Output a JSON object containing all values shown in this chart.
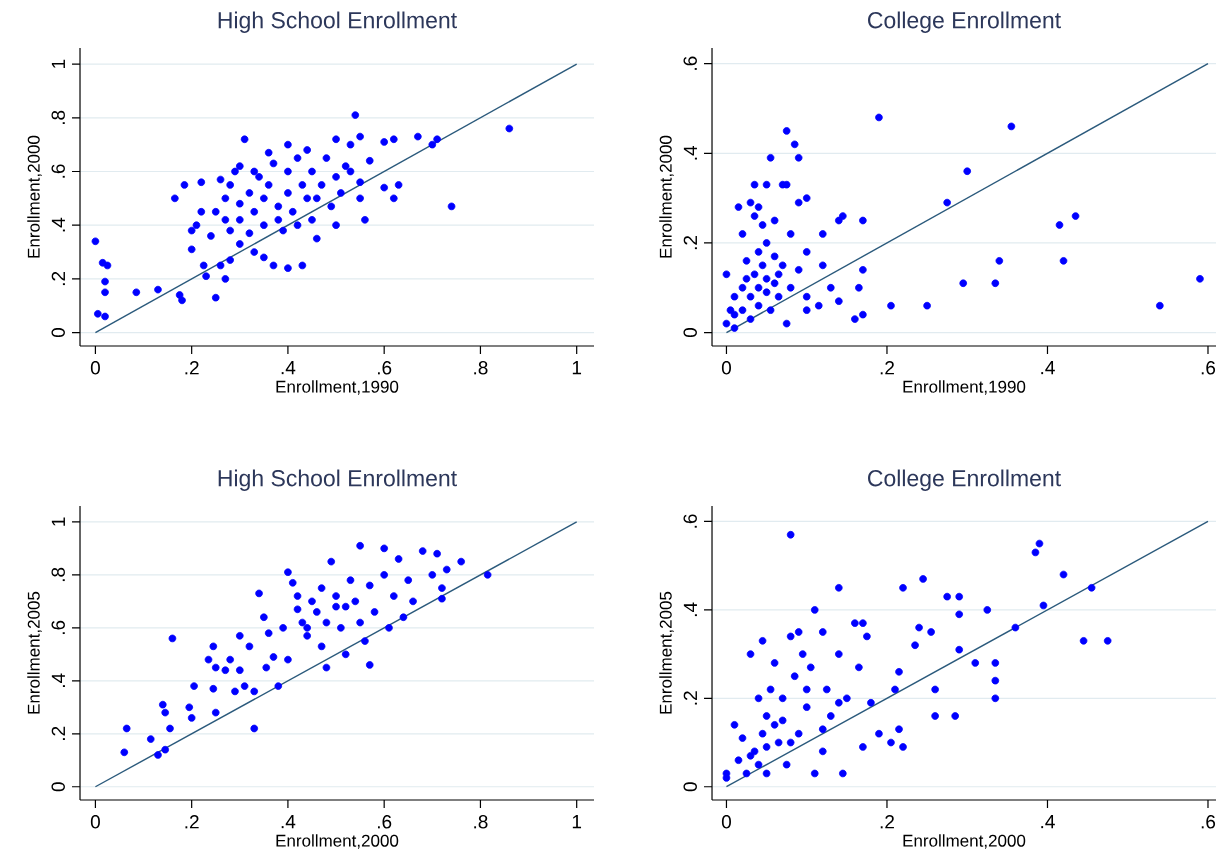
{
  "chart_data": [
    {
      "type": "scatter",
      "title": "High School Enrollment",
      "xlabel": "Enrollment,1990",
      "ylabel": "Enrollment,2000",
      "xlim": [
        -0.032,
        1.036
      ],
      "ylim": [
        -0.05,
        1.06
      ],
      "xticks": [
        0,
        {
          "value": 0.2,
          "label": ".2"
        },
        {
          "value": 0.4,
          "label": ".4"
        },
        {
          "value": 0.6,
          "label": ".6"
        },
        {
          "value": 0.8,
          "label": ".8"
        },
        1
      ],
      "yticks": [
        0,
        {
          "value": 0.2,
          "label": ".2"
        },
        {
          "value": 0.4,
          "label": ".4"
        },
        {
          "value": 0.6,
          "label": ".6"
        },
        {
          "value": 0.8,
          "label": ".8"
        },
        1
      ],
      "grid": "y",
      "series": [
        {
          "marker": "circle",
          "color": "#0000ff",
          "x": [
            0,
            0.005,
            0.02,
            0.015,
            0.02,
            0.025,
            0.02,
            0.085,
            0.13,
            0.175,
            0.18,
            0.165,
            0.185,
            0.2,
            0.2,
            0.22,
            0.225,
            0.23,
            0.25,
            0.26,
            0.27,
            0.28,
            0.3,
            0.31,
            0.33,
            0.35,
            0.37,
            0.4,
            0.43,
            0.46,
            0.5,
            0.54,
            0.55,
            0.56,
            0.6,
            0.62,
            0.6,
            0.62,
            0.63,
            0.67,
            0.7,
            0.71,
            0.74,
            0.86,
            0.25,
            0.27,
            0.28,
            0.3,
            0.3,
            0.32,
            0.33,
            0.33,
            0.35,
            0.35,
            0.36,
            0.37,
            0.38,
            0.38,
            0.4,
            0.4,
            0.41,
            0.42,
            0.43,
            0.44,
            0.45,
            0.45,
            0.47,
            0.48,
            0.5,
            0.5,
            0.52,
            0.53,
            0.55,
            0.57,
            0.55,
            0.49,
            0.22,
            0.21,
            0.24,
            0.28,
            0.3,
            0.26,
            0.32,
            0.4,
            0.44,
            0.36,
            0.27,
            0.29,
            0.34,
            0.39,
            0.42,
            0.46,
            0.51,
            0.53
          ],
          "values": [
            0.34,
            0.07,
            0.15,
            0.26,
            0.19,
            0.25,
            0.06,
            0.15,
            0.16,
            0.14,
            0.12,
            0.5,
            0.55,
            0.38,
            0.31,
            0.56,
            0.25,
            0.21,
            0.13,
            0.25,
            0.2,
            0.27,
            0.62,
            0.72,
            0.3,
            0.28,
            0.25,
            0.24,
            0.25,
            0.35,
            0.4,
            0.81,
            0.73,
            0.42,
            0.71,
            0.72,
            0.54,
            0.5,
            0.55,
            0.73,
            0.7,
            0.72,
            0.47,
            0.76,
            0.45,
            0.5,
            0.55,
            0.42,
            0.48,
            0.52,
            0.45,
            0.6,
            0.5,
            0.4,
            0.55,
            0.63,
            0.47,
            0.42,
            0.52,
            0.6,
            0.45,
            0.65,
            0.55,
            0.5,
            0.6,
            0.42,
            0.55,
            0.65,
            0.58,
            0.72,
            0.62,
            0.7,
            0.56,
            0.64,
            0.5,
            0.47,
            0.45,
            0.4,
            0.36,
            0.38,
            0.33,
            0.57,
            0.37,
            0.7,
            0.68,
            0.67,
            0.42,
            0.6,
            0.58,
            0.38,
            0.4,
            0.5,
            0.52,
            0.6
          ]
        },
        {
          "type": "line",
          "color": "#2b5a7c",
          "x": [
            0,
            1
          ],
          "values": [
            0,
            1
          ]
        }
      ]
    },
    {
      "type": "scatter",
      "title": "College Enrollment",
      "xlabel": "Enrollment,1990",
      "ylabel": "Enrollment,2000",
      "xlim": [
        -0.018,
        0.61
      ],
      "ylim": [
        -0.03,
        0.635
      ],
      "xticks": [
        0,
        {
          "value": 0.2,
          "label": ".2"
        },
        {
          "value": 0.4,
          "label": ".4"
        },
        {
          "value": 0.6,
          "label": ".6"
        }
      ],
      "yticks": [
        0,
        {
          "value": 0.2,
          "label": ".2"
        },
        {
          "value": 0.4,
          "label": ".4"
        },
        {
          "value": 0.6,
          "label": ".6"
        }
      ],
      "grid": "y",
      "series": [
        {
          "marker": "circle",
          "color": "#0000ff",
          "x": [
            0,
            0,
            0.005,
            0.01,
            0.01,
            0.015,
            0.02,
            0.025,
            0.03,
            0.035,
            0.035,
            0.04,
            0.045,
            0.05,
            0.055,
            0.06,
            0.07,
            0.075,
            0.075,
            0.085,
            0.09,
            0.09,
            0.1,
            0.08,
            0.1,
            0.12,
            0.14,
            0.145,
            0.17,
            0.19,
            0.275,
            0.3,
            0.355,
            0.34,
            0.415,
            0.435,
            0.42,
            0.59,
            0.54,
            0.295,
            0.335,
            0.25,
            0.205,
            0.16,
            0.17,
            0.165,
            0.17,
            0.14,
            0.13,
            0.12,
            0.115,
            0.1,
            0.1,
            0.07,
            0.06,
            0.05,
            0.04,
            0.03,
            0.02,
            0.03,
            0.04,
            0.05,
            0.06,
            0.045,
            0.035,
            0.025,
            0.055,
            0.065,
            0.075,
            0.08,
            0.09,
            0.04,
            0.05,
            0.065,
            0.02,
            0.01
          ],
          "values": [
            0.13,
            0.02,
            0.05,
            0.01,
            0.08,
            0.28,
            0.22,
            0.12,
            0.29,
            0.26,
            0.33,
            0.28,
            0.24,
            0.33,
            0.39,
            0.25,
            0.33,
            0.45,
            0.33,
            0.42,
            0.39,
            0.29,
            0.3,
            0.22,
            0.18,
            0.22,
            0.25,
            0.26,
            0.25,
            0.48,
            0.29,
            0.36,
            0.46,
            0.16,
            0.24,
            0.26,
            0.16,
            0.12,
            0.06,
            0.11,
            0.11,
            0.06,
            0.06,
            0.03,
            0.04,
            0.1,
            0.14,
            0.07,
            0.1,
            0.15,
            0.06,
            0.05,
            0.08,
            0.15,
            0.17,
            0.12,
            0.1,
            0.08,
            0.05,
            0.03,
            0.06,
            0.09,
            0.11,
            0.15,
            0.13,
            0.16,
            0.05,
            0.08,
            0.02,
            0.1,
            0.14,
            0.18,
            0.2,
            0.13,
            0.1,
            0.04
          ]
        },
        {
          "type": "line",
          "color": "#2b5a7c",
          "x": [
            0,
            0.6
          ],
          "values": [
            0,
            0.6
          ]
        }
      ]
    },
    {
      "type": "scatter",
      "title": "High School Enrollment",
      "xlabel": "Enrollment,2000",
      "ylabel": "Enrollment,2005",
      "xlim": [
        -0.032,
        1.036
      ],
      "ylim": [
        -0.05,
        1.06
      ],
      "xticks": [
        0,
        {
          "value": 0.2,
          "label": ".2"
        },
        {
          "value": 0.4,
          "label": ".4"
        },
        {
          "value": 0.6,
          "label": ".6"
        },
        {
          "value": 0.8,
          "label": ".8"
        },
        1
      ],
      "yticks": [
        0,
        {
          "value": 0.2,
          "label": ".2"
        },
        {
          "value": 0.4,
          "label": ".4"
        },
        {
          "value": 0.6,
          "label": ".6"
        },
        {
          "value": 0.8,
          "label": ".8"
        },
        1
      ],
      "grid": "y",
      "series": [
        {
          "marker": "circle",
          "color": "#0000ff",
          "x": [
            0.06,
            0.065,
            0.115,
            0.13,
            0.14,
            0.145,
            0.145,
            0.155,
            0.16,
            0.195,
            0.2,
            0.205,
            0.235,
            0.245,
            0.245,
            0.25,
            0.25,
            0.27,
            0.28,
            0.29,
            0.3,
            0.3,
            0.31,
            0.32,
            0.33,
            0.33,
            0.34,
            0.35,
            0.355,
            0.37,
            0.38,
            0.39,
            0.4,
            0.4,
            0.41,
            0.42,
            0.43,
            0.44,
            0.45,
            0.46,
            0.47,
            0.48,
            0.48,
            0.49,
            0.5,
            0.5,
            0.51,
            0.52,
            0.53,
            0.54,
            0.55,
            0.55,
            0.56,
            0.57,
            0.57,
            0.58,
            0.6,
            0.6,
            0.61,
            0.62,
            0.63,
            0.64,
            0.65,
            0.66,
            0.68,
            0.7,
            0.71,
            0.72,
            0.73,
            0.76,
            0.815,
            0.72,
            0.44,
            0.47,
            0.52,
            0.42,
            0.36
          ],
          "values": [
            0.13,
            0.22,
            0.18,
            0.12,
            0.31,
            0.28,
            0.14,
            0.22,
            0.56,
            0.3,
            0.26,
            0.38,
            0.48,
            0.53,
            0.37,
            0.45,
            0.28,
            0.44,
            0.48,
            0.36,
            0.57,
            0.44,
            0.38,
            0.53,
            0.22,
            0.36,
            0.73,
            0.64,
            0.45,
            0.49,
            0.38,
            0.6,
            0.81,
            0.48,
            0.77,
            0.67,
            0.62,
            0.57,
            0.7,
            0.66,
            0.75,
            0.45,
            0.62,
            0.85,
            0.72,
            0.68,
            0.6,
            0.5,
            0.78,
            0.7,
            0.91,
            0.62,
            0.55,
            0.46,
            0.76,
            0.66,
            0.9,
            0.8,
            0.6,
            0.72,
            0.86,
            0.64,
            0.78,
            0.7,
            0.89,
            0.8,
            0.88,
            0.75,
            0.82,
            0.85,
            0.8,
            0.71,
            0.6,
            0.53,
            0.68,
            0.72,
            0.58
          ]
        },
        {
          "type": "line",
          "color": "#2b5a7c",
          "x": [
            0,
            1
          ],
          "values": [
            0,
            1
          ]
        }
      ]
    },
    {
      "type": "scatter",
      "title": "College Enrollment",
      "xlabel": "Enrollment,2000",
      "ylabel": "Enrollment,2005",
      "xlim": [
        -0.018,
        0.61
      ],
      "ylim": [
        -0.03,
        0.635
      ],
      "xticks": [
        0,
        {
          "value": 0.2,
          "label": ".2"
        },
        {
          "value": 0.4,
          "label": ".4"
        },
        {
          "value": 0.6,
          "label": ".6"
        }
      ],
      "yticks": [
        0,
        {
          "value": 0.2,
          "label": ".2"
        },
        {
          "value": 0.4,
          "label": ".4"
        },
        {
          "value": 0.6,
          "label": ".6"
        }
      ],
      "grid": "y",
      "series": [
        {
          "marker": "circle",
          "color": "#0000ff",
          "x": [
            0,
            0,
            0.01,
            0.015,
            0.02,
            0.025,
            0.03,
            0.035,
            0.04,
            0.045,
            0.045,
            0.05,
            0.05,
            0.055,
            0.06,
            0.065,
            0.07,
            0.075,
            0.08,
            0.08,
            0.085,
            0.09,
            0.09,
            0.095,
            0.1,
            0.105,
            0.11,
            0.11,
            0.12,
            0.12,
            0.125,
            0.13,
            0.14,
            0.14,
            0.145,
            0.15,
            0.16,
            0.165,
            0.17,
            0.17,
            0.175,
            0.18,
            0.19,
            0.205,
            0.21,
            0.215,
            0.215,
            0.22,
            0.22,
            0.235,
            0.24,
            0.245,
            0.255,
            0.26,
            0.26,
            0.275,
            0.285,
            0.29,
            0.29,
            0.29,
            0.31,
            0.325,
            0.335,
            0.335,
            0.335,
            0.36,
            0.385,
            0.39,
            0.395,
            0.42,
            0.445,
            0.455,
            0.475,
            0.06,
            0.08,
            0.1,
            0.12,
            0.03,
            0.05,
            0.07,
            0.14,
            0.04
          ],
          "values": [
            0.02,
            0.03,
            0.14,
            0.06,
            0.11,
            0.03,
            0.3,
            0.08,
            0.2,
            0.33,
            0.12,
            0.03,
            0.16,
            0.22,
            0.28,
            0.1,
            0.2,
            0.05,
            0.57,
            0.34,
            0.25,
            0.35,
            0.12,
            0.3,
            0.18,
            0.27,
            0.4,
            0.03,
            0.35,
            0.08,
            0.22,
            0.16,
            0.45,
            0.3,
            0.03,
            0.2,
            0.37,
            0.27,
            0.37,
            0.09,
            0.34,
            0.19,
            0.12,
            0.1,
            0.22,
            0.26,
            0.13,
            0.45,
            0.09,
            0.32,
            0.36,
            0.47,
            0.35,
            0.16,
            0.22,
            0.43,
            0.16,
            0.31,
            0.39,
            0.43,
            0.28,
            0.4,
            0.28,
            0.2,
            0.24,
            0.36,
            0.53,
            0.55,
            0.41,
            0.48,
            0.33,
            0.45,
            0.33,
            0.14,
            0.1,
            0.22,
            0.13,
            0.07,
            0.09,
            0.15,
            0.19,
            0.05
          ]
        },
        {
          "type": "line",
          "color": "#2b5a7c",
          "x": [
            0,
            0.6
          ],
          "values": [
            0,
            0.6
          ]
        }
      ]
    }
  ]
}
